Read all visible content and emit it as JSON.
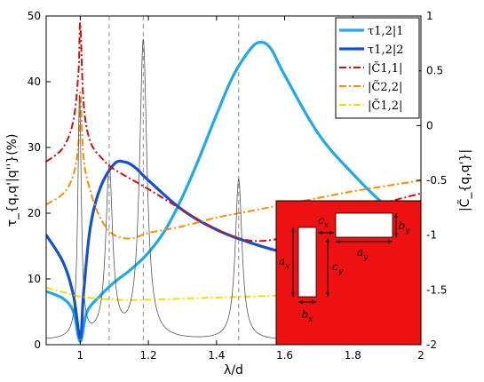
{
  "chart_data": {
    "type": "line",
    "xlabel": "λ/d",
    "ylabel_left": "τ_{q,q'|q''}(%)",
    "ylabel_right": "|C̃_{q,q'}|",
    "xlim": [
      0.9,
      2.0
    ],
    "ylim_left": [
      0,
      50
    ],
    "ylim_right": [
      -2,
      1
    ],
    "x_ticks": [
      {
        "value": 1.0,
        "label": "1"
      },
      {
        "value": 1.2,
        "label": "1.2"
      },
      {
        "value": 1.4,
        "label": "1.4"
      },
      {
        "value": 1.6,
        "label": "1.6"
      },
      {
        "value": 1.8,
        "label": "1.8"
      },
      {
        "value": 2.0,
        "label": "2"
      }
    ],
    "y_left_ticks": [
      {
        "value": 0,
        "label": "0"
      },
      {
        "value": 10,
        "label": "10"
      },
      {
        "value": 20,
        "label": "20"
      },
      {
        "value": 30,
        "label": "30"
      },
      {
        "value": 40,
        "label": "40"
      },
      {
        "value": 50,
        "label": "50"
      }
    ],
    "y_right_ticks": [
      {
        "value": 1,
        "label": "1"
      },
      {
        "value": 0.5,
        "label": "0.5"
      },
      {
        "value": 0,
        "label": "0"
      },
      {
        "value": -0.5,
        "label": "-0.5"
      },
      {
        "value": -1,
        "label": "-1"
      },
      {
        "value": -1.5,
        "label": "-1.5"
      },
      {
        "value": -2,
        "label": "-2"
      }
    ],
    "vlines": [
      1.085,
      1.185,
      1.465
    ],
    "legend": {
      "position": "top-right",
      "entries": [
        {
          "label": "τ1,2|1",
          "color": "#1eaaea",
          "style": "solid"
        },
        {
          "label": "τ1,2|2",
          "color": "#1450d2",
          "style": "solid"
        },
        {
          "label": "|C̃1,1|",
          "color": "#cc1111",
          "style": "dashdot"
        },
        {
          "label": "|C̃2,2|",
          "color": "#ff8c00",
          "style": "dashdot"
        },
        {
          "label": "|C̃1,2|",
          "color": "#f0e000",
          "style": "dashdot"
        }
      ]
    },
    "series": [
      {
        "name": "τ1,2|1",
        "axis": "left",
        "color": "#1eaaea",
        "style": "solid",
        "x": [
          0.9,
          0.95,
          0.98,
          1.0,
          1.02,
          1.06,
          1.1,
          1.15,
          1.2,
          1.25,
          1.3,
          1.35,
          1.4,
          1.45,
          1.5,
          1.53,
          1.56,
          1.6,
          1.7,
          1.8,
          1.9,
          2.0
        ],
        "y": [
          8.1,
          7.0,
          5.0,
          0.5,
          5.0,
          7.5,
          9.5,
          11.5,
          14.0,
          17.5,
          22.5,
          28.5,
          35.0,
          41.0,
          45.0,
          46.0,
          45.0,
          41.0,
          32.0,
          26.0,
          21.0,
          17.5
        ]
      },
      {
        "name": "τ1,2|2",
        "axis": "left",
        "color": "#1450d2",
        "style": "solid",
        "x": [
          0.9,
          0.95,
          0.98,
          1.0,
          1.01,
          1.03,
          1.06,
          1.1,
          1.13,
          1.16,
          1.2,
          1.3,
          1.4,
          1.5,
          1.6,
          1.7,
          1.8,
          1.9,
          2.0
        ],
        "y": [
          16.7,
          12.5,
          7.5,
          1.0,
          8.0,
          18.0,
          24.0,
          27.5,
          27.8,
          27.0,
          25.0,
          20.5,
          17.5,
          15.5,
          14.0,
          13.0,
          12.5,
          12.0,
          11.0
        ]
      },
      {
        "name": "|C̃1,1|",
        "axis": "right",
        "color": "#cc1111",
        "style": "dashdot",
        "x": [
          0.9,
          0.95,
          0.98,
          0.995,
          1.0,
          1.01,
          1.03,
          1.07,
          1.1,
          1.2,
          1.3,
          1.4,
          1.5,
          1.6,
          1.7,
          1.8,
          1.9,
          2.0
        ],
        "y": [
          -0.33,
          -0.2,
          0.05,
          0.5,
          0.93,
          0.2,
          -0.15,
          -0.32,
          -0.4,
          -0.58,
          -0.77,
          -0.95,
          -1.05,
          -1.02,
          -0.9,
          -0.8,
          -0.7,
          -0.62
        ]
      },
      {
        "name": "|C̃2,2|",
        "axis": "right",
        "color": "#ff8c00",
        "style": "dashdot",
        "x": [
          0.9,
          0.95,
          0.98,
          0.995,
          1.0,
          1.01,
          1.03,
          1.06,
          1.1,
          1.15,
          1.2,
          1.3,
          1.4,
          1.5,
          1.6,
          1.7,
          1.8,
          1.9,
          2.0
        ],
        "y": [
          -0.72,
          -0.62,
          -0.45,
          -0.15,
          0.3,
          -0.3,
          -0.6,
          -0.85,
          -1.0,
          -1.03,
          -0.98,
          -0.92,
          -0.84,
          -0.78,
          -0.72,
          -0.66,
          -0.6,
          -0.55,
          -0.5
        ]
      },
      {
        "name": "|C̃1,2|",
        "axis": "right",
        "color": "#f0e000",
        "style": "dashdot",
        "x": [
          0.9,
          0.95,
          1.0,
          1.1,
          1.2,
          1.3,
          1.4,
          1.5,
          1.6,
          1.7,
          1.8,
          1.9,
          2.0
        ],
        "y": [
          -1.48,
          -1.52,
          -1.56,
          -1.59,
          -1.59,
          -1.58,
          -1.57,
          -1.56,
          -1.55,
          -1.54,
          -1.53,
          -1.52,
          -1.51
        ]
      },
      {
        "axis": "left",
        "color": "#555555",
        "style": "thin",
        "kind": "resonance",
        "background": 0.6,
        "peaks": [
          {
            "x0": 0.998,
            "gamma": 0.006,
            "amp": 37
          },
          {
            "x0": 1.085,
            "gamma": 0.012,
            "amp": 26
          },
          {
            "x0": 1.185,
            "gamma": 0.013,
            "amp": 45.5
          },
          {
            "x0": 1.465,
            "gamma": 0.012,
            "amp": 24.5
          }
        ]
      }
    ],
    "inset": {
      "position": "bottom-right",
      "background": "#ee1111",
      "labels": {
        "cx": "c_x",
        "ax": "a_x",
        "cy": "c_y",
        "ay": "a_y",
        "by": "b_y",
        "bx": "b_x"
      }
    }
  }
}
